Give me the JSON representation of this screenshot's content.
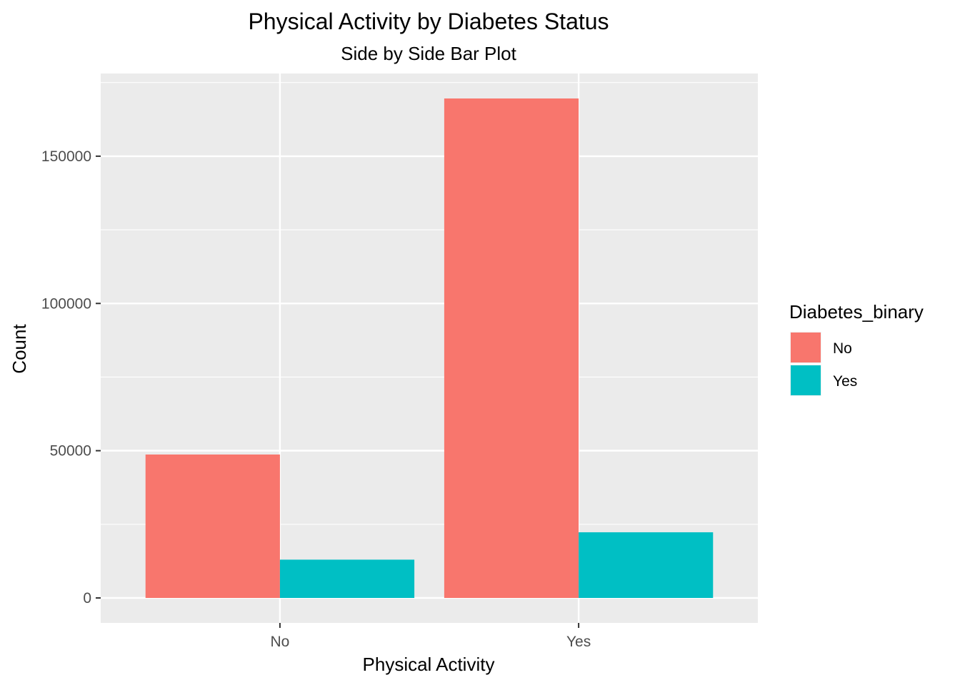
{
  "chart_data": {
    "type": "bar",
    "title": "Physical Activity by Diabetes Status",
    "subtitle": "Side by Side Bar Plot",
    "xlabel": "Physical Activity",
    "ylabel": "Count",
    "categories": [
      "No",
      "Yes"
    ],
    "series": [
      {
        "name": "No",
        "color": "#F8766D",
        "values": [
          48700,
          169600
        ]
      },
      {
        "name": "Yes",
        "color": "#00BFC4",
        "values": [
          13000,
          22300
        ]
      }
    ],
    "ylim": [
      -8480,
      178080
    ],
    "yticks": [
      0,
      50000,
      100000,
      150000
    ],
    "ytick_labels": [
      "0",
      "50000",
      "100000",
      "150000"
    ],
    "grid": true,
    "panel_background": "#EBEBEB",
    "legend": {
      "title": "Diabetes_binary",
      "position": "right",
      "entries": [
        "No",
        "Yes"
      ]
    }
  }
}
